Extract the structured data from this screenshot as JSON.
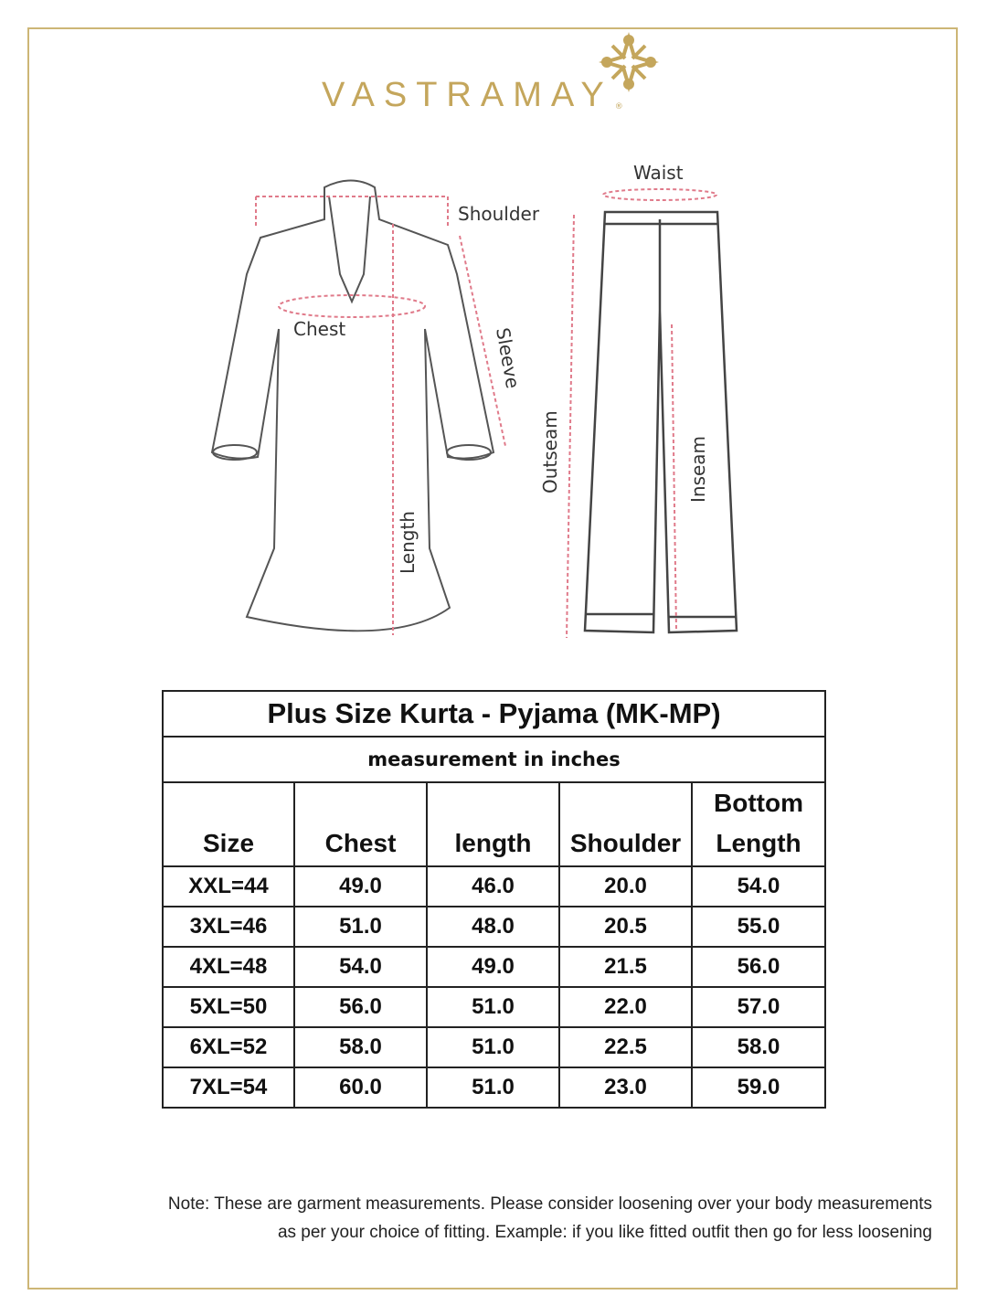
{
  "brand": {
    "name": "VASTRAMAY",
    "registered": "®",
    "color": "#c4a65c",
    "icon": "mandala-logo-icon"
  },
  "diagram": {
    "kurta_labels": [
      "Shoulder",
      "Chest",
      "Sleeve",
      "Length"
    ],
    "pyjama_labels": [
      "Waist",
      "Outseam",
      "Inseam"
    ],
    "measure_line_color": "#e07a8a"
  },
  "table": {
    "title": "Plus Size Kurta - Pyjama (MK-MP)",
    "subtitle": "measurement in inches",
    "headers": [
      "Size",
      "Chest",
      "length",
      "Shoulder",
      "Bottom Length"
    ],
    "rows": [
      [
        "XXL=44",
        "49.0",
        "46.0",
        "20.0",
        "54.0"
      ],
      [
        "3XL=46",
        "51.0",
        "48.0",
        "20.5",
        "55.0"
      ],
      [
        "4XL=48",
        "54.0",
        "49.0",
        "21.5",
        "56.0"
      ],
      [
        "5XL=50",
        "56.0",
        "51.0",
        "22.0",
        "57.0"
      ],
      [
        "6XL=52",
        "58.0",
        "51.0",
        "22.5",
        "58.0"
      ],
      [
        "7XL=54",
        "60.0",
        "51.0",
        "23.0",
        "59.0"
      ]
    ]
  },
  "note": {
    "line1": "Note: These are garment measurements. Please consider loosening over your body measurements",
    "line2": "as per your choice of fitting. Example: if you like fitted outfit then go for less loosening"
  }
}
